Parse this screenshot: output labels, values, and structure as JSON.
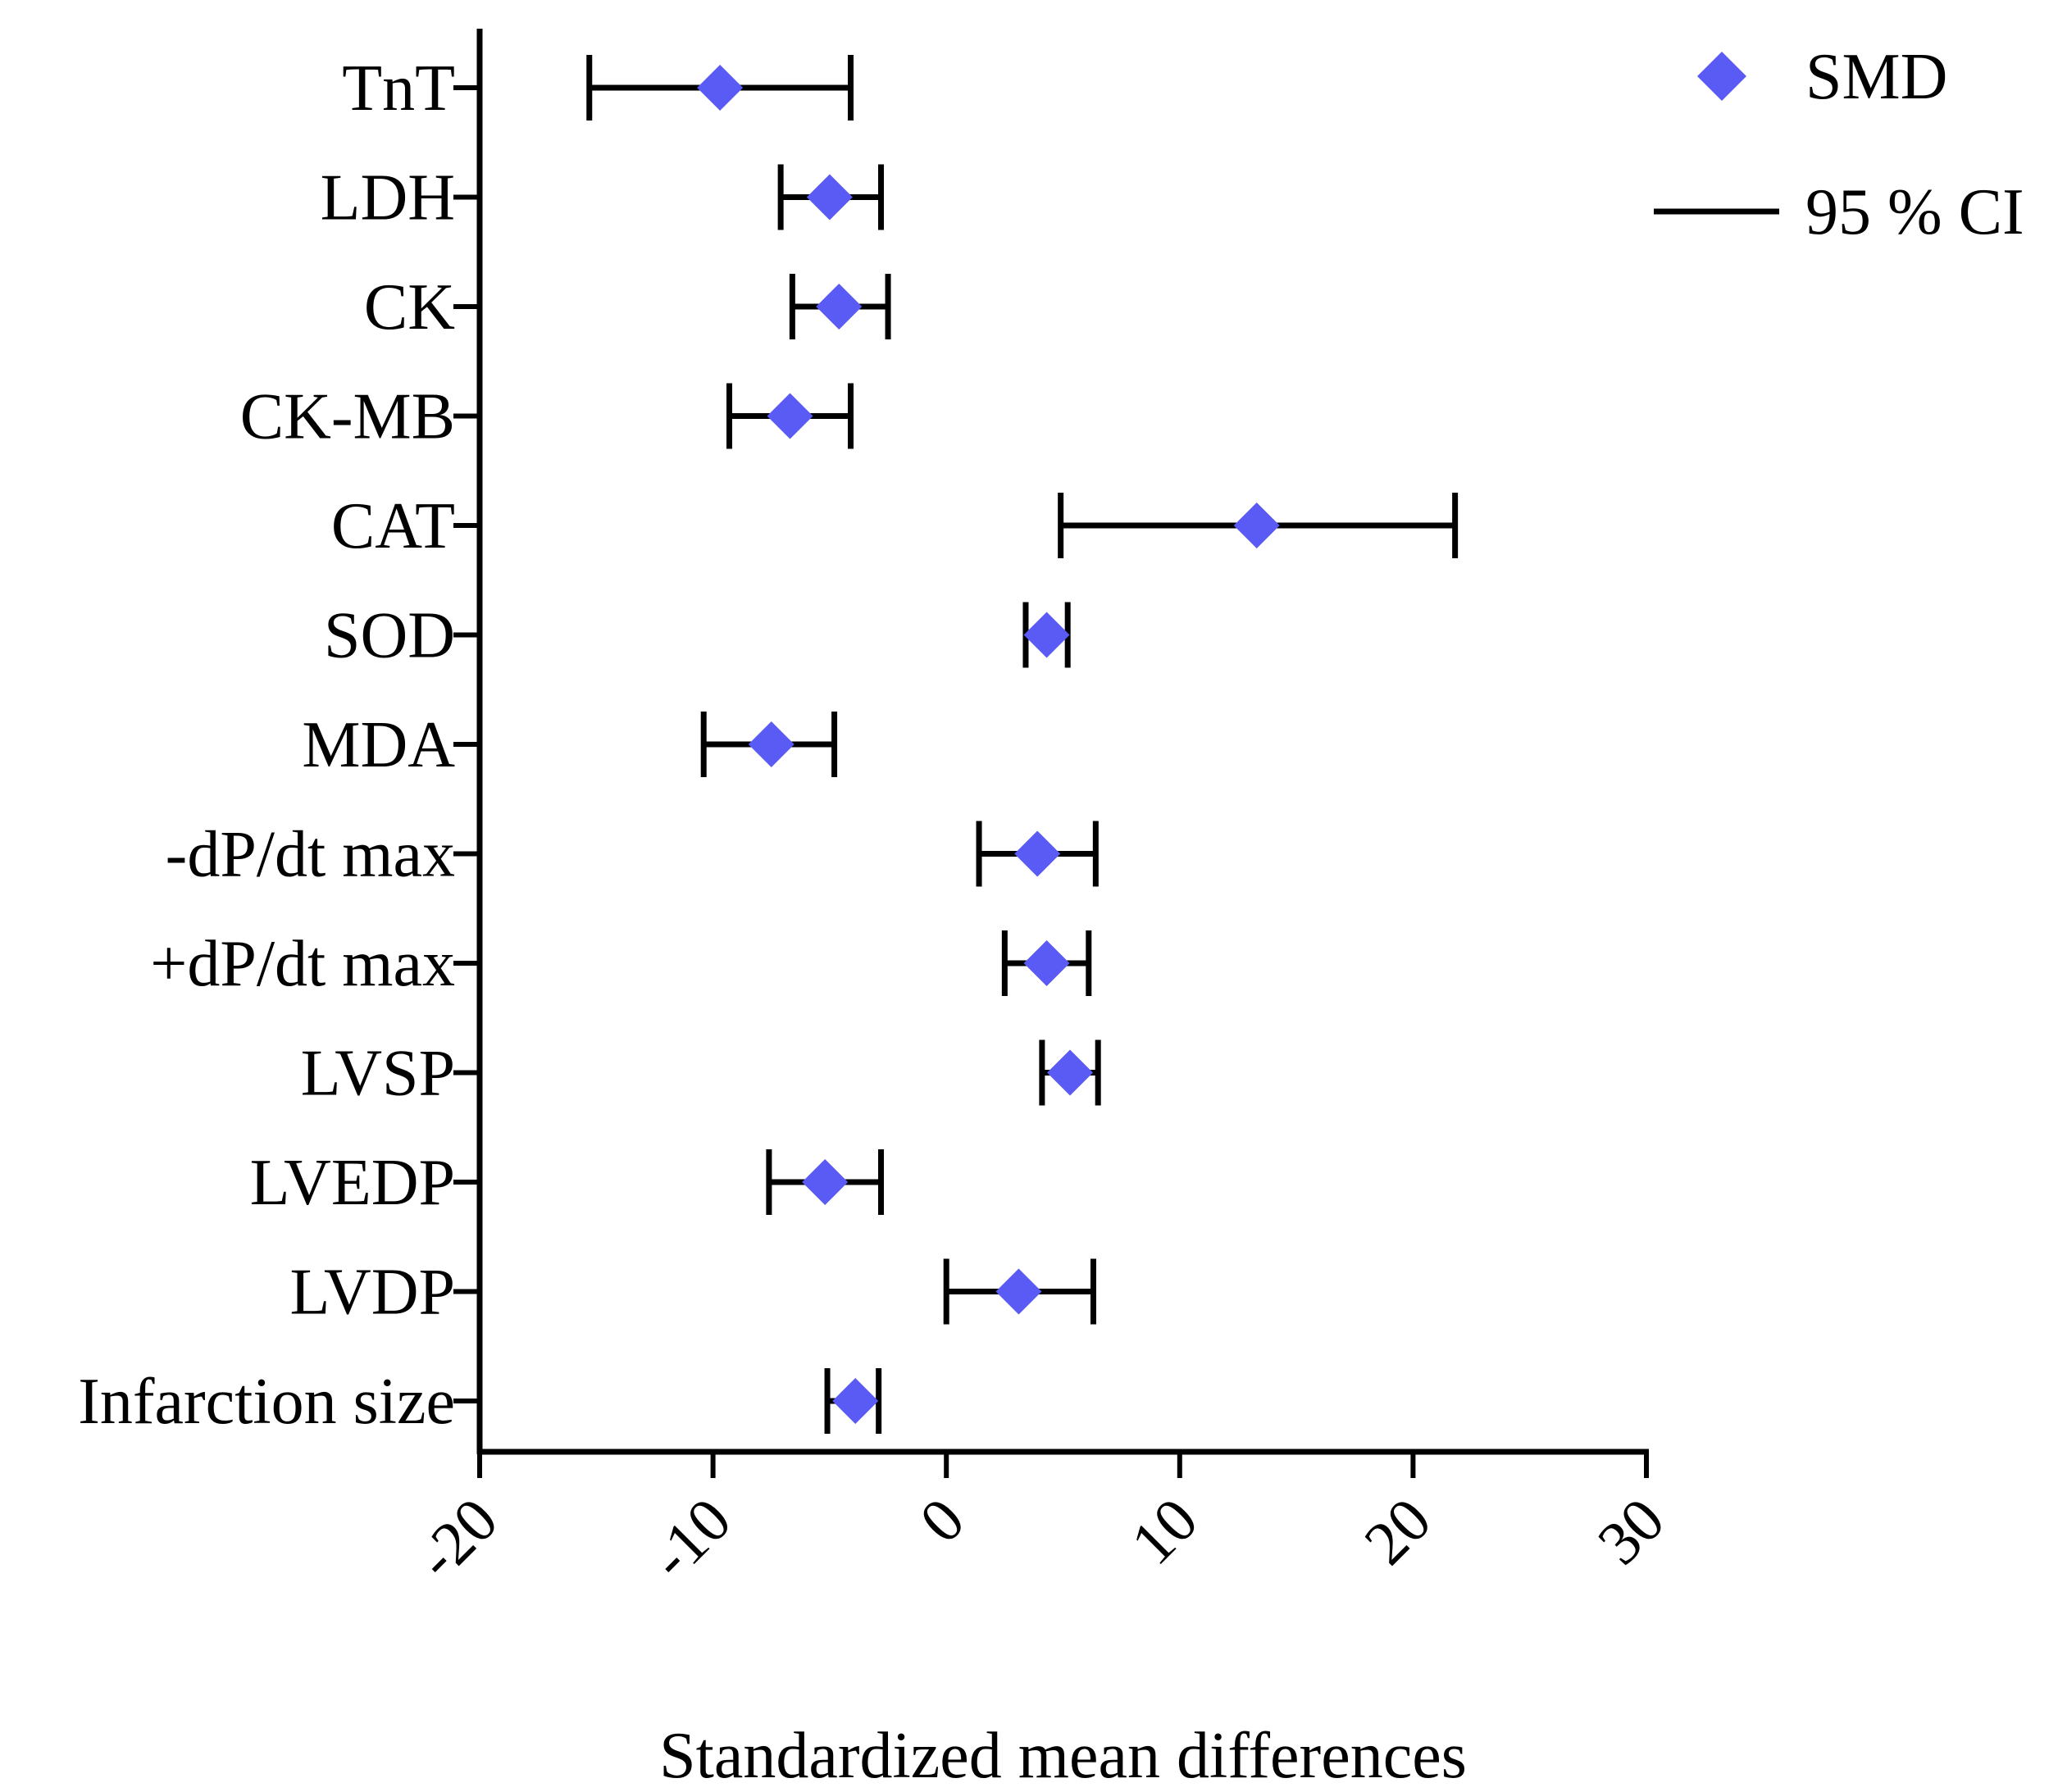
{
  "chart_data": {
    "type": "forest",
    "title": "",
    "xlabel": "Standardized mean differences",
    "ylabel": "",
    "xlim": [
      -20,
      30
    ],
    "x_ticks": [
      -20,
      -10,
      0,
      10,
      20,
      30
    ],
    "x_tick_labels": [
      "-20",
      "-10",
      "0",
      "10",
      "20",
      "30"
    ],
    "grid": false,
    "legend_position": "top-right",
    "colors": {
      "marker": "#5a5af5",
      "ci": "#000000",
      "axis": "#000000"
    },
    "series": [
      {
        "name": "SMD",
        "marker": "diamond"
      },
      {
        "name": "95 % CI",
        "marker": "line"
      }
    ],
    "rows": [
      {
        "label": "TnT",
        "smd": -9.7,
        "ci_low": -15.3,
        "ci_high": -4.1
      },
      {
        "label": "LDH",
        "smd": -5.0,
        "ci_low": -7.1,
        "ci_high": -2.8
      },
      {
        "label": "CK",
        "smd": -4.6,
        "ci_low": -6.6,
        "ci_high": -2.5
      },
      {
        "label": "CK-MB",
        "smd": -6.7,
        "ci_low": -9.3,
        "ci_high": -4.1
      },
      {
        "label": "CAT",
        "smd": 13.3,
        "ci_low": 4.9,
        "ci_high": 21.8
      },
      {
        "label": "SOD",
        "smd": 4.3,
        "ci_low": 3.4,
        "ci_high": 5.2
      },
      {
        "label": "MDA",
        "smd": -7.5,
        "ci_low": -10.4,
        "ci_high": -4.8
      },
      {
        "label": "-dP/dt max",
        "smd": 3.9,
        "ci_low": 1.4,
        "ci_high": 6.4
      },
      {
        "label": "+dP/dt max",
        "smd": 4.3,
        "ci_low": 2.5,
        "ci_high": 6.1
      },
      {
        "label": "LVSP",
        "smd": 5.3,
        "ci_low": 4.1,
        "ci_high": 6.5
      },
      {
        "label": "LVEDP",
        "smd": -5.2,
        "ci_low": -7.6,
        "ci_high": -2.8
      },
      {
        "label": "LVDP",
        "smd": 3.1,
        "ci_low": 0.0,
        "ci_high": 6.3
      },
      {
        "label": "Infarction size",
        "smd": -3.9,
        "ci_low": -5.1,
        "ci_high": -2.9
      }
    ]
  }
}
